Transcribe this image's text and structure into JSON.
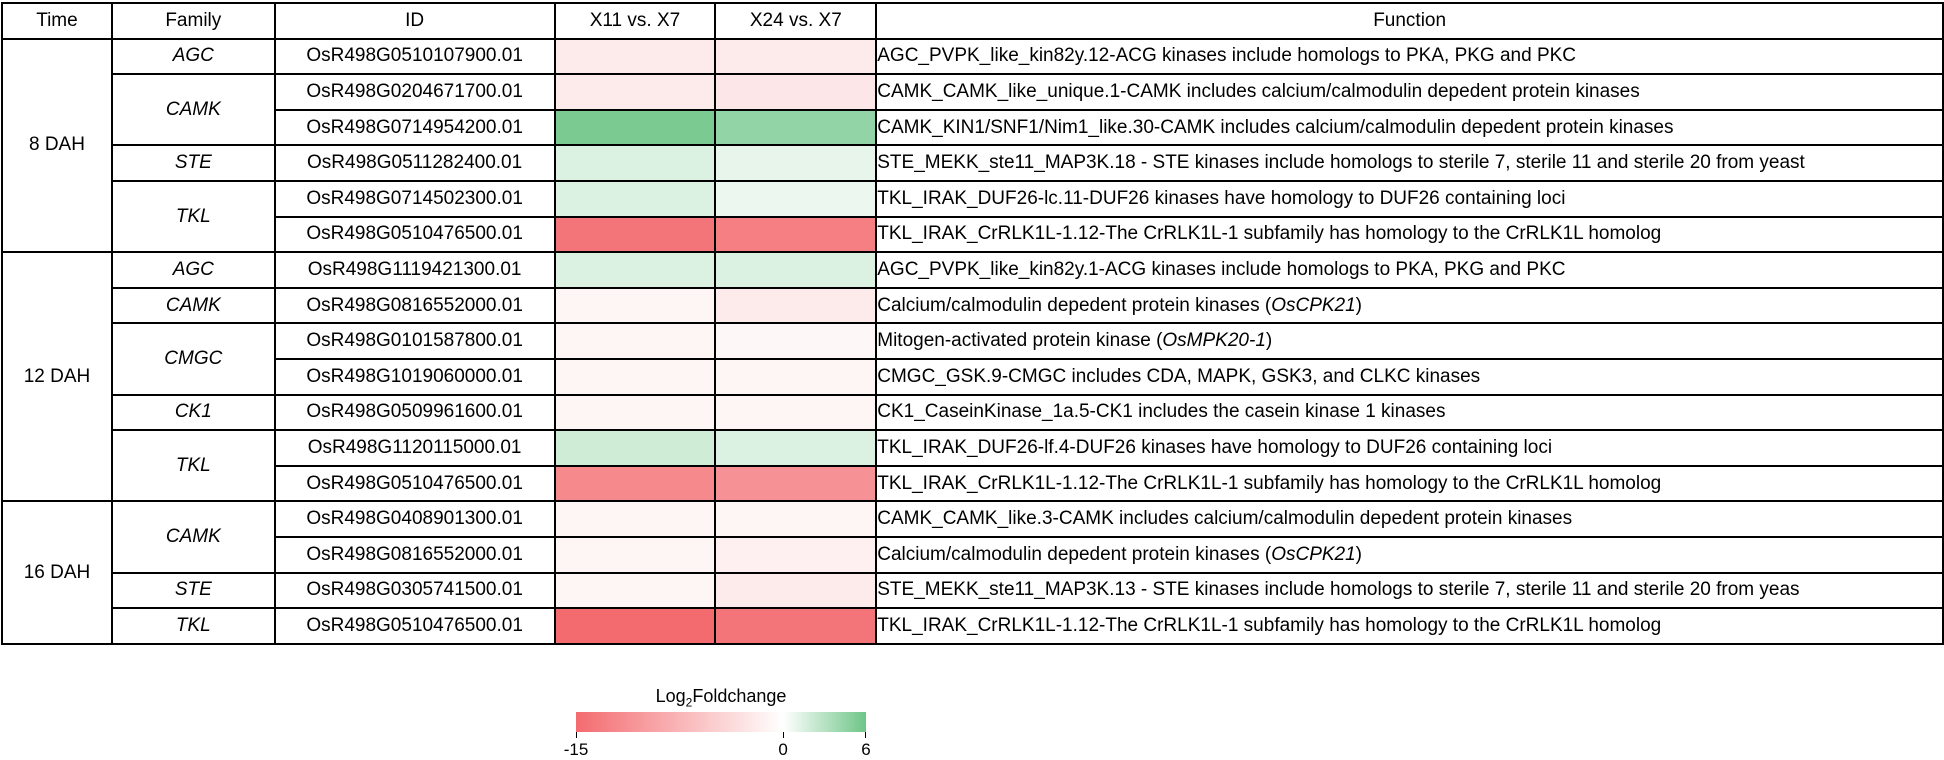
{
  "headers": [
    "Time",
    "Family",
    "ID",
    "X11 vs. X7",
    "X24 vs. X7",
    "Function"
  ],
  "colors": {
    "low": "#f36b6f",
    "mid": "#ffffff",
    "high": "#6ec587"
  },
  "chart_data": {
    "type": "heatmap",
    "x": [
      "X11 vs. X7",
      "X24 vs. X7"
    ],
    "scale": {
      "min": -15,
      "mid": 0,
      "max": 6
    },
    "rows": [
      {
        "time": "8 DAH",
        "family": "AGC",
        "id": "OsR498G0510107900.01",
        "values": [
          -2,
          -2
        ],
        "function": "AGC_PVPK_like_kin82y.12-ACG kinases include homologs to PKA, PKG and PKC"
      },
      {
        "time": "8 DAH",
        "family": "CAMK",
        "id": "OsR498G0204671700.01",
        "values": [
          -2,
          -2.5
        ],
        "function": "CAMK_CAMK_like_unique.1-CAMK includes calcium/calmodulin depedent protein kinases"
      },
      {
        "time": "8 DAH",
        "family": "CAMK",
        "id": "OsR498G0714954200.01",
        "values": [
          5.5,
          4.5
        ],
        "function": "CAMK_KIN1/SNF1/Nim1_like.30-CAMK includes calcium/calmodulin depedent protein kinases"
      },
      {
        "time": "8 DAH",
        "family": "STE",
        "id": "OsR498G0511282400.01",
        "values": [
          1.5,
          1
        ],
        "function": "STE_MEKK_ste11_MAP3K.18 - STE kinases include homologs to sterile 7, sterile 11 and sterile 20 from yeast"
      },
      {
        "time": "8 DAH",
        "family": "TKL",
        "id": "OsR498G0714502300.01",
        "values": [
          1.5,
          0.8
        ],
        "function": "TKL_IRAK_DUF26-lc.11-DUF26 kinases have homology to DUF26 containing loci"
      },
      {
        "time": "8 DAH",
        "family": "TKL",
        "id": "OsR498G0510476500.01",
        "values": [
          -14,
          -13
        ],
        "function": "TKL_IRAK_CrRLK1L-1.12-The CrRLK1L-1 subfamily has homology to the CrRLK1L homolog"
      },
      {
        "time": "12 DAH",
        "family": "AGC",
        "id": "OsR498G1119421300.01",
        "values": [
          1.5,
          1.5
        ],
        "function": "AGC_PVPK_like_kin82y.1-ACG kinases include homologs to PKA, PKG and PKC"
      },
      {
        "time": "12 DAH",
        "family": "CAMK",
        "id": "OsR498G0816552000.01",
        "values": [
          -1,
          -2
        ],
        "function": "Calcium/calmodulin depedent protein kinases (",
        "gene": "OsCPK21",
        "suffix": ")"
      },
      {
        "time": "12 DAH",
        "family": "CMGC",
        "id": "OsR498G0101587800.01",
        "values": [
          -1,
          -0.8
        ],
        "function": "Mitogen-activated protein kinase (",
        "gene": "OsMPK20-1",
        "suffix": ")"
      },
      {
        "time": "12 DAH",
        "family": "CMGC",
        "id": "OsR498G1019060000.01",
        "values": [
          -1,
          -1
        ],
        "function": "CMGC_GSK.9-CMGC includes CDA, MAPK, GSK3, and CLKC kinases"
      },
      {
        "time": "12 DAH",
        "family": "CK1",
        "id": "OsR498G0509961600.01",
        "values": [
          -1,
          -1
        ],
        "function": "CK1_CaseinKinase_1a.5-CK1 includes the casein kinase 1 kinases"
      },
      {
        "time": "12 DAH",
        "family": "TKL",
        "id": "OsR498G1120115000.01",
        "values": [
          2,
          1.5
        ],
        "function": "TKL_IRAK_DUF26-lf.4-DUF26 kinases have homology to DUF26 containing loci"
      },
      {
        "time": "12 DAH",
        "family": "TKL",
        "id": "OsR498G0510476500.01",
        "values": [
          -12,
          -11
        ],
        "function": "TKL_IRAK_CrRLK1L-1.12-The CrRLK1L-1 subfamily has homology to the CrRLK1L homolog"
      },
      {
        "time": "16 DAH",
        "family": "CAMK",
        "id": "OsR498G0408901300.01",
        "values": [
          -1,
          -1
        ],
        "function": "CAMK_CAMK_like.3-CAMK includes calcium/calmodulin depedent protein kinases"
      },
      {
        "time": "16 DAH",
        "family": "CAMK",
        "id": "OsR498G0816552000.01",
        "values": [
          -1,
          -1.5
        ],
        "function": "Calcium/calmodulin depedent protein kinases (",
        "gene": "OsCPK21",
        "suffix": ")"
      },
      {
        "time": "16 DAH",
        "family": "STE",
        "id": "OsR498G0305741500.01",
        "values": [
          -1,
          -2
        ],
        "function": "STE_MEKK_ste11_MAP3K.13 - STE kinases include homologs to sterile 7, sterile 11 and sterile 20 from yeas"
      },
      {
        "time": "16 DAH",
        "family": "TKL",
        "id": "OsR498G0510476500.01",
        "values": [
          -15,
          -14
        ],
        "function": "TKL_IRAK_CrRLK1L-1.12-The CrRLK1L-1 subfamily has homology to the CrRLK1L homolog"
      }
    ],
    "legend": {
      "title_main": "Log",
      "title_sub": "2",
      "title_rest": "Foldchange",
      "ticks": [
        "-15",
        "0",
        "6"
      ],
      "tick_values": [
        -15,
        0,
        6
      ]
    }
  }
}
